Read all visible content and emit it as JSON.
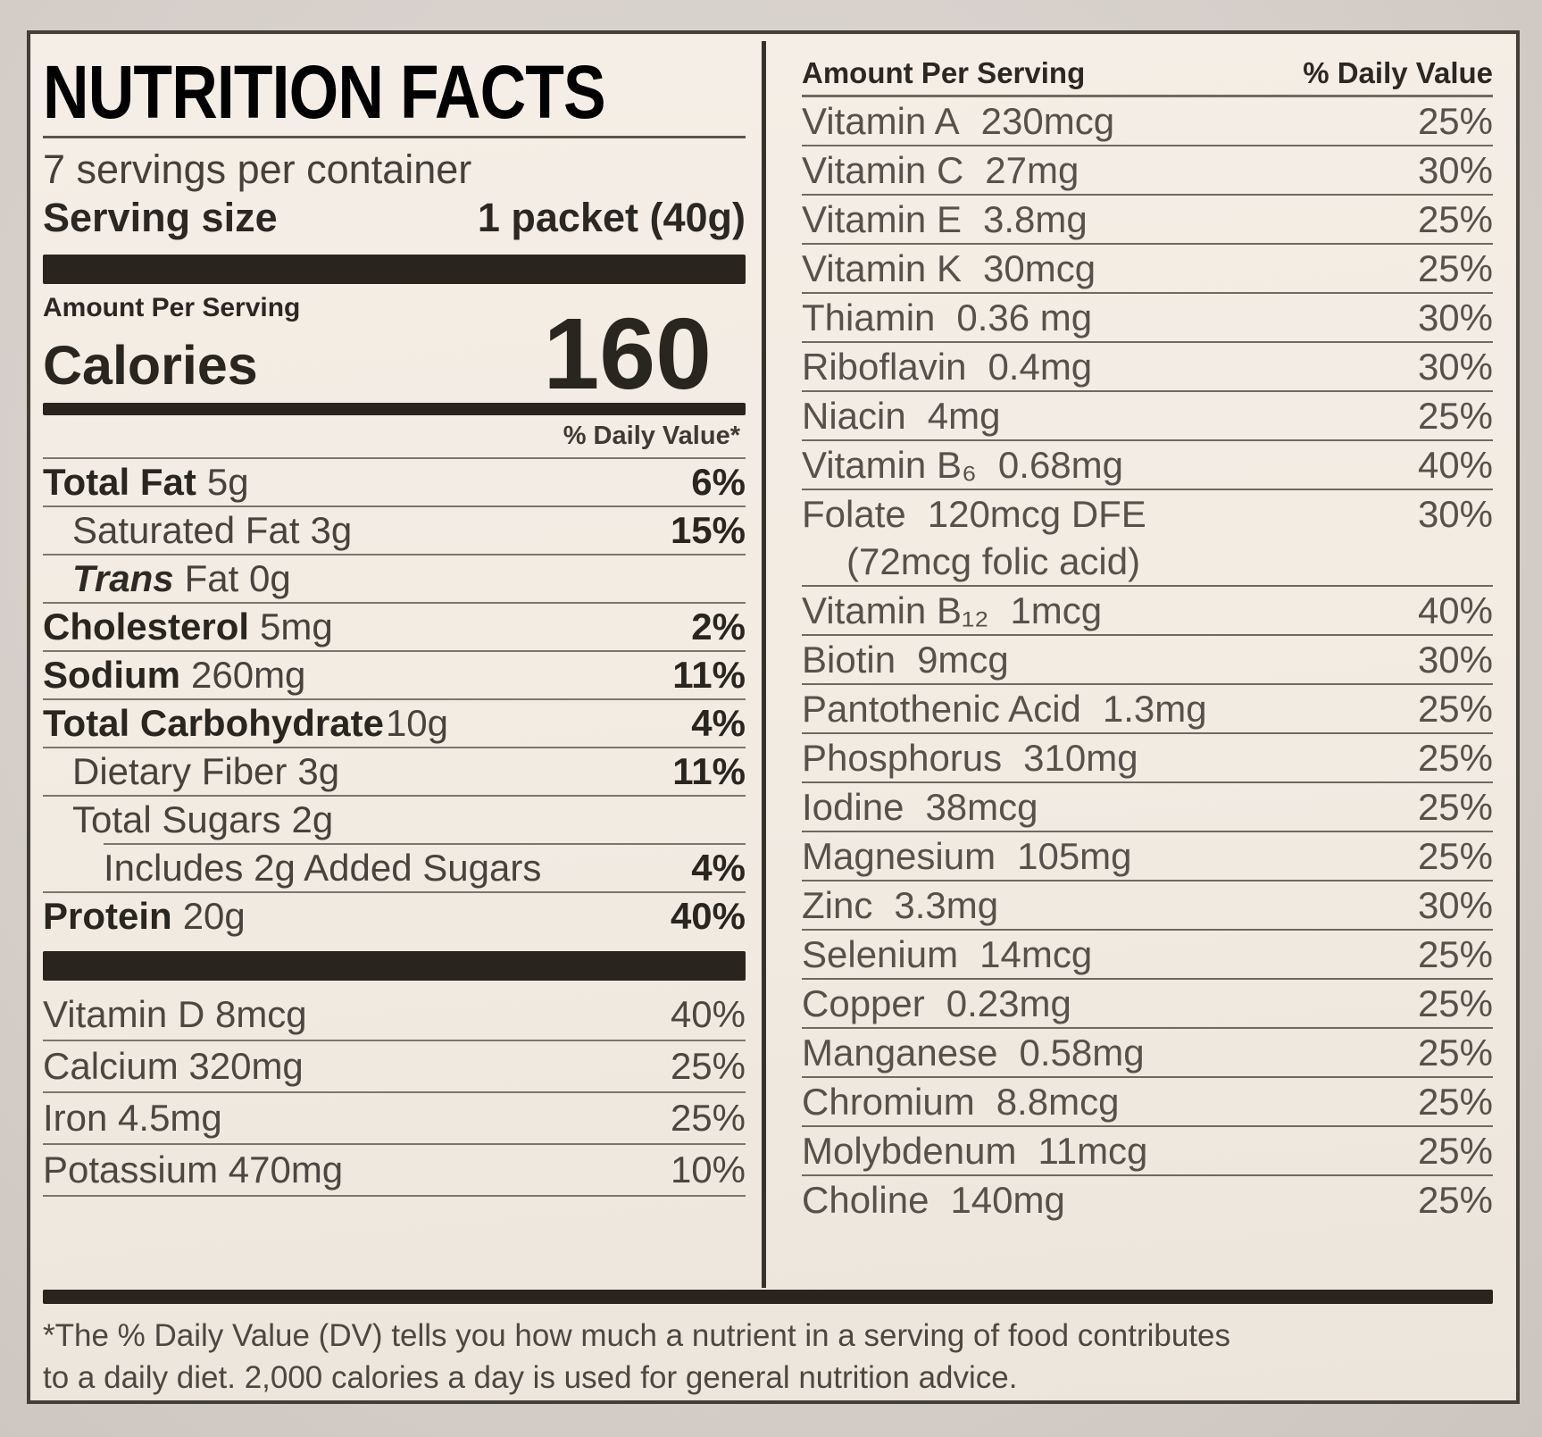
{
  "label": {
    "title": "NUTRITION FACTS",
    "servings_per_container": "7 servings per container",
    "serving_size_label": "Serving size",
    "serving_size_value": "1 packet (40g)",
    "amount_per_serving": "Amount Per Serving",
    "calories_label": "Calories",
    "calories_value": "160",
    "daily_value_note": "% Daily Value*",
    "nutrients": [
      {
        "name": "Total Fat",
        "amount": "5g",
        "dv": "6%",
        "bold": true,
        "indent": 0
      },
      {
        "name": "Saturated Fat",
        "amount": "3g",
        "dv": "15%",
        "indent": 1
      },
      {
        "name": "Trans",
        "amount": "Fat 0g",
        "dv": "",
        "indent": 1,
        "italic": true
      },
      {
        "name": "Cholesterol",
        "amount": "5mg",
        "dv": "2%",
        "bold": true,
        "indent": 0
      },
      {
        "name": "Sodium",
        "amount": "260mg",
        "dv": "11%",
        "bold": true,
        "indent": 0
      },
      {
        "name": "Total Carbohydrate",
        "amount": "10g",
        "dv": "4%",
        "bold": true,
        "indent": 0,
        "tight": true
      },
      {
        "name": "Dietary Fiber",
        "amount": "3g",
        "dv": "11%",
        "indent": 1
      },
      {
        "name": "Total Sugars",
        "amount": "2g",
        "dv": "",
        "indent": 1,
        "sep_indent": true
      },
      {
        "name": "Includes 2g Added Sugars",
        "amount": "",
        "dv": "4%",
        "indent": 2
      },
      {
        "name": "Protein",
        "amount": "20g",
        "dv": "40%",
        "bold": true,
        "indent": 0
      }
    ],
    "minerals": [
      {
        "name": "Vitamin D 8mcg",
        "dv": "40%"
      },
      {
        "name": "Calcium 320mg",
        "dv": "25%"
      },
      {
        "name": "Iron 4.5mg",
        "dv": "25%"
      },
      {
        "name": "Potassium 470mg",
        "dv": "10%"
      }
    ],
    "right_column": {
      "header_amount": "Amount Per Serving",
      "header_dv": "% Daily Value",
      "rows": [
        {
          "name": "Vitamin A",
          "amount": "230mcg",
          "dv": "25%"
        },
        {
          "name": "Vitamin C",
          "amount": "27mg",
          "dv": "30%"
        },
        {
          "name": "Vitamin E",
          "amount": "3.8mg",
          "dv": "25%"
        },
        {
          "name": "Vitamin K",
          "amount": "30mcg",
          "dv": "25%"
        },
        {
          "name": "Thiamin",
          "amount": "0.36 mg",
          "dv": "30%"
        },
        {
          "name": "Riboflavin",
          "amount": "0.4mg",
          "dv": "30%"
        },
        {
          "name": "Niacin",
          "amount": "4mg",
          "dv": "25%"
        },
        {
          "name": "Vitamin B₆",
          "amount": "0.68mg",
          "dv": "40%"
        },
        {
          "name": "Folate",
          "amount": "120mcg DFE",
          "dv": "30%",
          "continuation": "(72mcg folic acid)"
        },
        {
          "name": "Vitamin B₁₂",
          "amount": "1mcg",
          "dv": "40%"
        },
        {
          "name": "Biotin",
          "amount": "9mcg",
          "dv": "30%"
        },
        {
          "name": "Pantothenic Acid",
          "amount": "1.3mg",
          "dv": "25%"
        },
        {
          "name": "Phosphorus",
          "amount": "310mg",
          "dv": "25%"
        },
        {
          "name": "Iodine",
          "amount": "38mcg",
          "dv": "25%"
        },
        {
          "name": "Magnesium",
          "amount": "105mg",
          "dv": "25%"
        },
        {
          "name": "Zinc",
          "amount": "3.3mg",
          "dv": "30%"
        },
        {
          "name": "Selenium",
          "amount": "14mcg",
          "dv": "25%"
        },
        {
          "name": "Copper",
          "amount": "0.23mg",
          "dv": "25%"
        },
        {
          "name": "Manganese",
          "amount": "0.58mg",
          "dv": "25%"
        },
        {
          "name": "Chromium",
          "amount": "8.8mcg",
          "dv": "25%"
        },
        {
          "name": "Molybdenum",
          "amount": "11mcg",
          "dv": "25%"
        },
        {
          "name": "Choline",
          "amount": "140mg",
          "dv": "25%"
        }
      ]
    },
    "footnote_line1": "*The % Daily Value (DV) tells you how much a nutrient in a serving of food contributes",
    "footnote_line2": "to a daily diet. 2,000 calories a day is used for general nutrition advice.",
    "colors": {
      "label_background": "#f1ebe2",
      "photo_background": "#d6cfca",
      "ink_dark": "#29251f",
      "ink_gray": "#56514a",
      "hairline": "#7c766c"
    }
  }
}
